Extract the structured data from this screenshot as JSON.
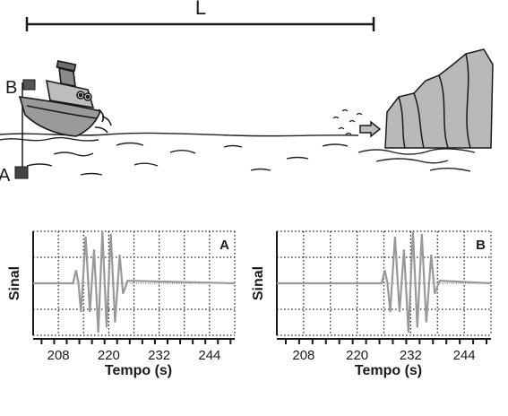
{
  "scene": {
    "distance_label": "L",
    "sensor_top": "B",
    "sensor_bottom": "A"
  },
  "chart_data": [
    {
      "type": "line",
      "panel_label": "A",
      "ylabel": "Sinal",
      "xlabel": "Tempo (s)",
      "xlim": [
        202,
        250
      ],
      "ylim": [
        -1,
        1
      ],
      "xticks": [
        208,
        220,
        232,
        244
      ],
      "grid": true,
      "series": [
        {
          "x": [
            202,
            211.5,
            212.2,
            212.8,
            213.4,
            214.5,
            215.5,
            216.5,
            217.5,
            218.5,
            219.5,
            220.5,
            221.5,
            222.6,
            223.4,
            224.5,
            250
          ],
          "y": [
            0,
            0,
            0.25,
            0,
            -0.55,
            0.9,
            -0.55,
            0.65,
            -0.95,
            1.0,
            -0.85,
            0.95,
            -0.75,
            0.55,
            -0.2,
            0.05,
            0
          ]
        }
      ]
    },
    {
      "type": "line",
      "panel_label": "B",
      "ylabel": "Sinal",
      "xlabel": "Tempo (s)",
      "xlim": [
        202,
        250
      ],
      "ylim": [
        -1,
        1
      ],
      "xticks": [
        208,
        220,
        232,
        244
      ],
      "grid": true,
      "series": [
        {
          "x": [
            202,
            225.5,
            226.2,
            226.8,
            227.4,
            228.5,
            229.5,
            230.5,
            231.5,
            232.5,
            233.5,
            234.5,
            235.5,
            236.6,
            237.4,
            238.5,
            250
          ],
          "y": [
            0,
            0,
            0.25,
            0,
            -0.55,
            0.9,
            -0.55,
            0.65,
            -0.95,
            1.0,
            -0.85,
            0.95,
            -0.75,
            0.55,
            -0.2,
            0.05,
            0
          ]
        }
      ]
    }
  ]
}
